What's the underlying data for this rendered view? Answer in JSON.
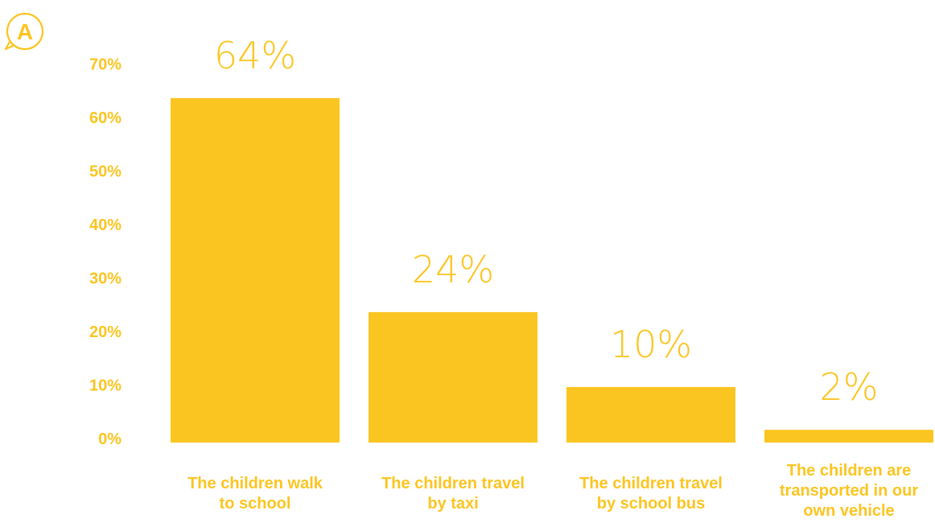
{
  "brand": {
    "accent": "#FBC521",
    "logo_icon": "letter-a-speech-bubble-icon",
    "logo_glyph": "A"
  },
  "chart_data": {
    "type": "bar",
    "categories": [
      [
        "The children walk",
        "to school"
      ],
      [
        "The children travel",
        "by taxi"
      ],
      [
        "The children travel",
        "by school bus"
      ],
      [
        "The children are",
        "transported in our",
        "own vehicle"
      ]
    ],
    "values": [
      64,
      24,
      10,
      2
    ],
    "value_labels": [
      "64%",
      "24%",
      "10%",
      "2%"
    ],
    "yticks": [
      0,
      10,
      20,
      30,
      40,
      50,
      60,
      70
    ],
    "ytick_labels": [
      "0%",
      "10%",
      "20%",
      "30%",
      "40%",
      "50%",
      "60%",
      "70%"
    ],
    "ylim": [
      0,
      70
    ],
    "grid": false,
    "legend": "none",
    "title": "",
    "xlabel": "",
    "ylabel": "",
    "bar_color": "#FBC521",
    "label_color": "#FBC521"
  }
}
